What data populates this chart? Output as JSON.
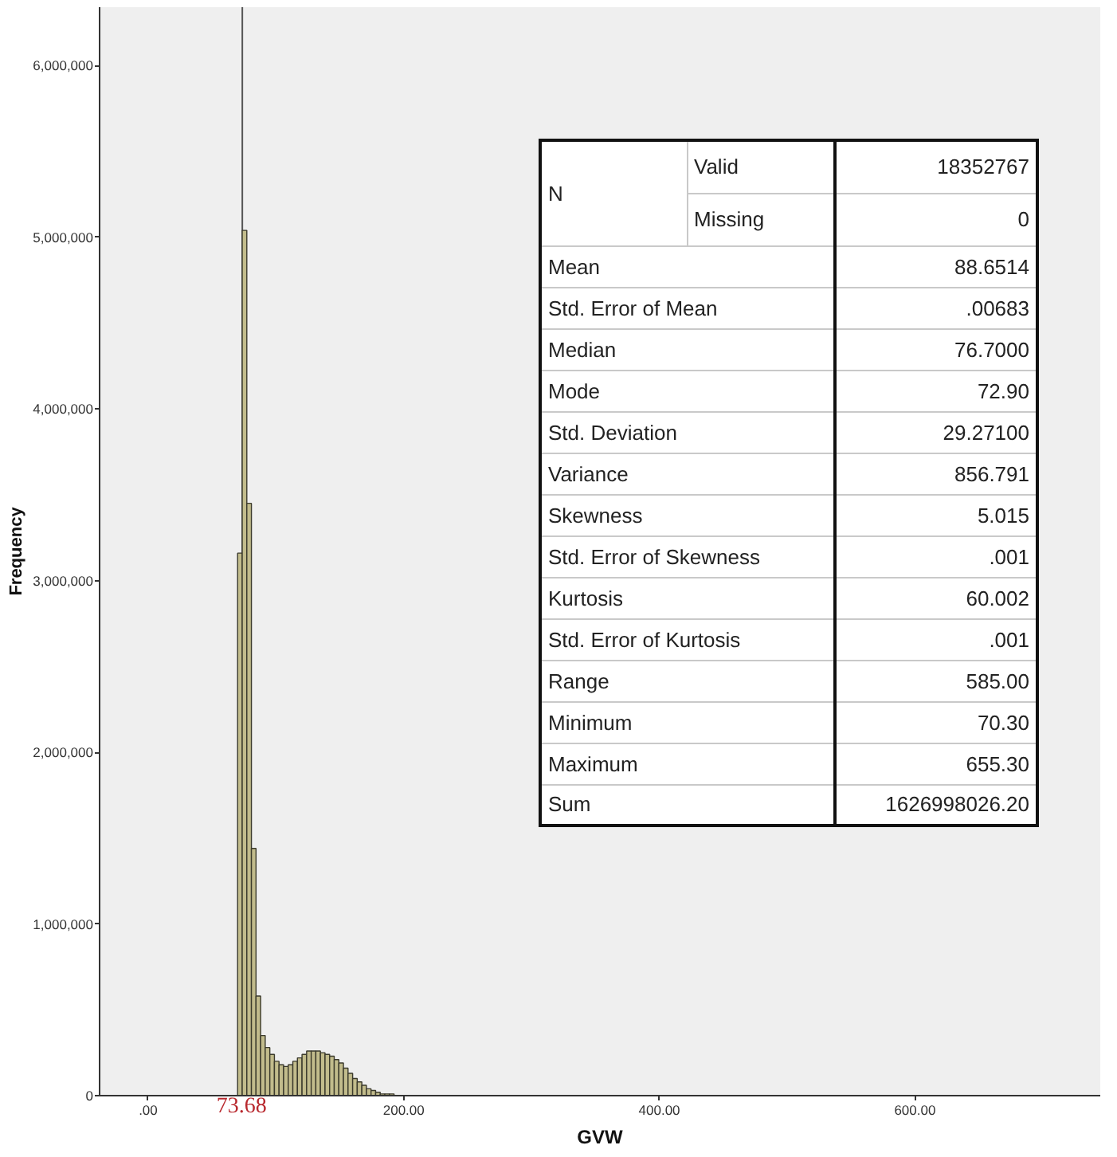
{
  "chart_data": {
    "type": "histogram",
    "xlabel": "GVW",
    "ylabel": "Frequency",
    "color": "#c2bc8c",
    "bins": [
      70,
      73.6,
      77.2,
      80.8,
      84.4,
      88,
      91.6,
      95.2,
      98.8,
      102.4,
      106,
      109.6,
      113.2,
      116.8,
      120.4,
      124,
      127.6,
      131.2,
      134.8,
      138.4,
      142,
      145.6,
      149.2,
      152.8,
      156.4,
      160,
      163.6,
      167.2,
      170.8,
      174.4,
      178,
      181.6,
      185.2,
      188.8,
      192.4
    ],
    "values": [
      3160000,
      5040000,
      3450000,
      1440000,
      580000,
      350000,
      280000,
      240000,
      200000,
      180000,
      170000,
      180000,
      200000,
      220000,
      240000,
      260000,
      260000,
      260000,
      250000,
      240000,
      230000,
      210000,
      190000,
      160000,
      130000,
      100000,
      80000,
      60000,
      40000,
      30000,
      20000,
      10000,
      10000,
      10000
    ],
    "xlim": [
      -38,
      745
    ],
    "ylim": [
      0,
      6340000
    ],
    "xticks": [
      {
        "value": 0,
        "label": ".00"
      },
      {
        "value": 200,
        "label": "200.00"
      },
      {
        "value": 400,
        "label": "400.00"
      },
      {
        "value": 600,
        "label": "600.00"
      }
    ],
    "yticks": [
      0,
      {
        "value": 1000000,
        "label": "1,000,000"
      },
      {
        "value": 2000000,
        "label": "2,000,000"
      },
      {
        "value": 3000000,
        "label": "3,000,000"
      },
      {
        "value": 4000000,
        "label": "4,000,000"
      },
      {
        "value": 5000000,
        "label": "5,000,000"
      },
      {
        "value": 6000000,
        "label": "6,000,000"
      }
    ],
    "ref_lines": [
      {
        "axis": "x",
        "value": 73.68,
        "label": "73.68",
        "color": "#555555"
      }
    ],
    "annotations": [
      "N",
      "Valid",
      "18352767",
      "Missing",
      "0",
      "Mean",
      "88.6514",
      "Std. Error of Mean",
      ".00683",
      "Median",
      "76.7000",
      "Mode",
      "72.90",
      "Std. Deviation",
      "29.27100",
      "Variance",
      "856.791",
      "Skewness",
      "5.015",
      "Std. Error of Skewness",
      ".001",
      "Kurtosis",
      "60.002",
      "Std. Error of Kurtosis",
      ".001",
      "Range",
      "585.00",
      "Minimum",
      "70.30",
      "Maximum",
      "655.30",
      "Sum",
      "1626998026.20"
    ]
  }
}
